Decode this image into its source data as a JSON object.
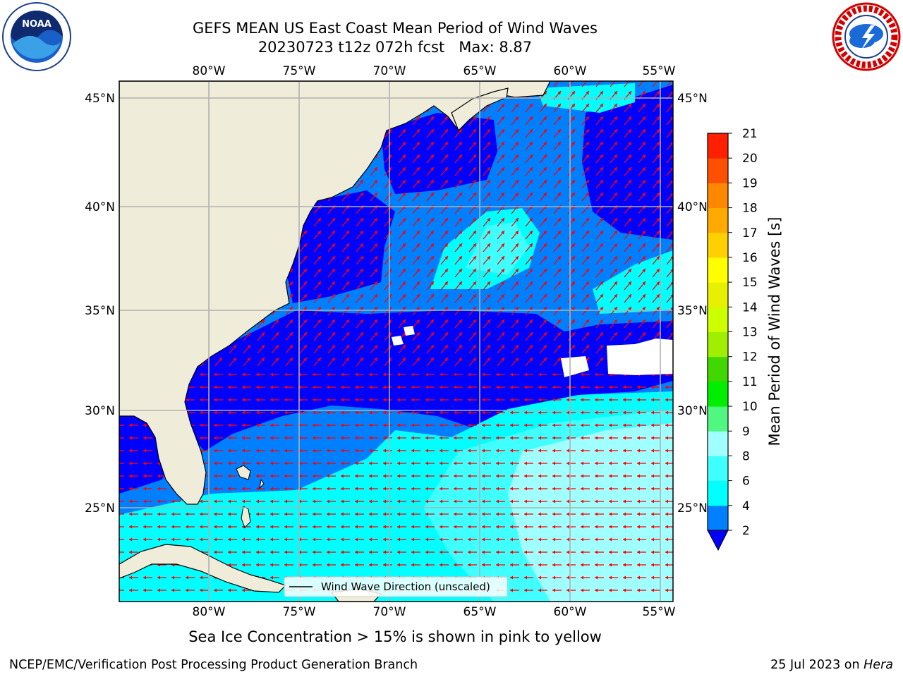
{
  "title": {
    "line1": "GEFS MEAN US East Coast Mean Period of Wind Waves",
    "line2": "20230723 t12z 072h fcst   Max: 8.87"
  },
  "logos": {
    "left": "noaa-logo",
    "left_text": "NOAA",
    "right": "nws-logo"
  },
  "map": {
    "lon_labels": [
      "80°W",
      "75°W",
      "70°W",
      "65°W",
      "60°W",
      "55°W"
    ],
    "lat_labels": [
      "45°N",
      "40°N",
      "35°N",
      "30°N",
      "25°N"
    ],
    "legend_label": "Wind Wave Direction (unscaled)",
    "colors": {
      "land": "#efedda",
      "arrow": "#ff0000",
      "grid": "#b0b0b0"
    }
  },
  "colorbar": {
    "label": "Mean Period of Wind Waves [s]",
    "ticks": [
      "2",
      "4",
      "6",
      "8",
      "9",
      "10",
      "11",
      "12",
      "13",
      "14",
      "15",
      "16",
      "17",
      "18",
      "19",
      "20",
      "21"
    ],
    "colors": [
      "#0000ff",
      "#0080ff",
      "#00ffff",
      "#40ffff",
      "#a0ffff",
      "#50f880",
      "#00ee00",
      "#40d800",
      "#a0ee00",
      "#ccff00",
      "#e6f000",
      "#ffff00",
      "#ffd000",
      "#ffaa00",
      "#ff8800",
      "#ff5000",
      "#ff2000",
      "#ff0000"
    ]
  },
  "footer": {
    "ice_note": "Sea Ice Concentration > 15% is shown in pink to yellow",
    "credit": "NCEP/EMC/Verification Post Processing Product Generation Branch",
    "date_prefix": "25 Jul 2023 on ",
    "machine": "Hera"
  }
}
